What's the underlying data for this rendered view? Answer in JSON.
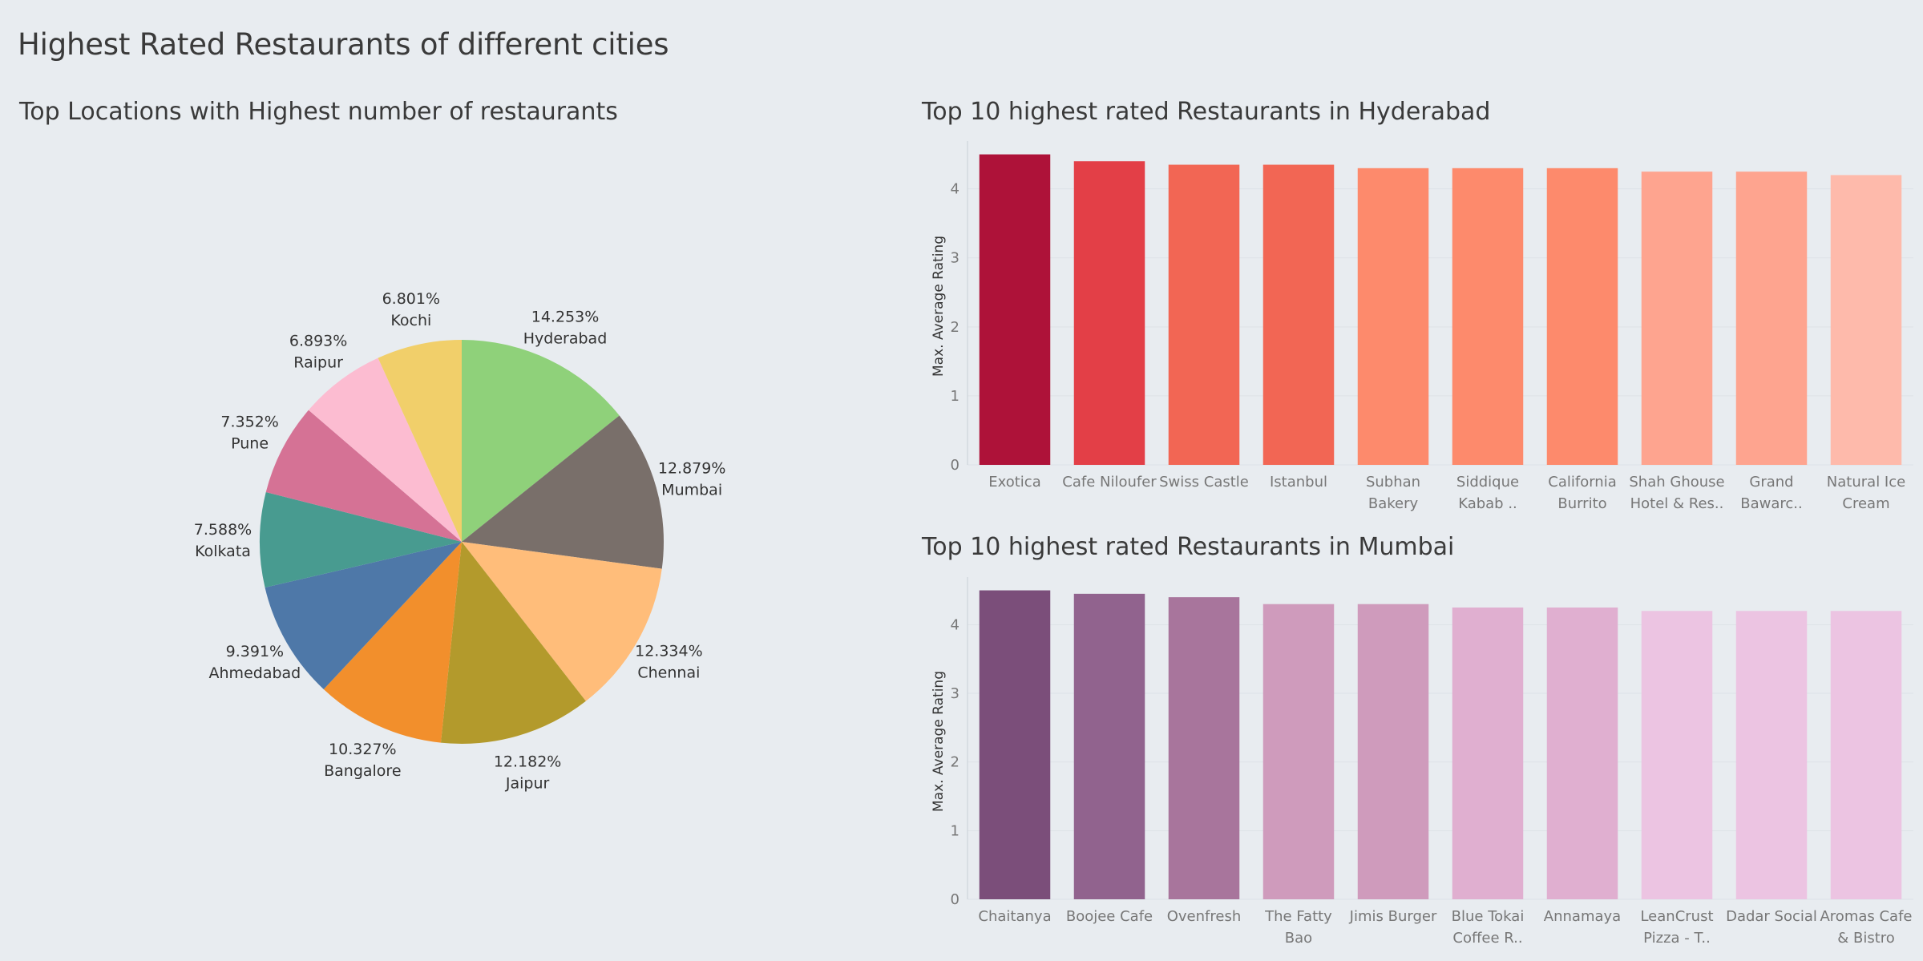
{
  "dashboard": {
    "title": "Highest Rated Restaurants of different cities"
  },
  "chart_data": [
    {
      "type": "pie",
      "title": "Top Locations with Highest number of restaurants",
      "slices": [
        {
          "label": "Hyderabad",
          "value": 14.253,
          "value_label": "14.253%",
          "color": "#8fd17a"
        },
        {
          "label": "Mumbai",
          "value": 12.879,
          "value_label": "12.879%",
          "color": "#796f6a"
        },
        {
          "label": "Chennai",
          "value": 12.334,
          "value_label": "12.334%",
          "color": "#ffbd7a"
        },
        {
          "label": "Jaipur",
          "value": 12.182,
          "value_label": "12.182%",
          "color": "#b39a2c"
        },
        {
          "label": "Bangalore",
          "value": 10.327,
          "value_label": "10.327%",
          "color": "#f28f2c"
        },
        {
          "label": "Ahmedabad",
          "value": 9.391,
          "value_label": "9.391%",
          "color": "#4e78a8"
        },
        {
          "label": "Kolkata",
          "value": 7.588,
          "value_label": "7.588%",
          "color": "#489b90"
        },
        {
          "label": "Pune",
          "value": 7.352,
          "value_label": "7.352%",
          "color": "#d57295"
        },
        {
          "label": "Raipur",
          "value": 6.893,
          "value_label": "6.893%",
          "color": "#fcbcd1"
        },
        {
          "label": "Kochi",
          "value": 6.801,
          "value_label": "6.801%",
          "color": "#f1cf6a"
        }
      ]
    },
    {
      "type": "bar",
      "title": "Top 10 highest rated Restaurants in Hyderabad",
      "ylabel": "Max. Average Rating",
      "ylim": [
        0,
        4.6
      ],
      "yticks": [
        0,
        1,
        2,
        3,
        4
      ],
      "categories": [
        [
          "Exotica"
        ],
        [
          "Cafe Niloufer"
        ],
        [
          "Swiss Castle"
        ],
        [
          "Istanbul"
        ],
        [
          "Subhan",
          "Bakery"
        ],
        [
          "Siddique",
          "Kabab .."
        ],
        [
          "California",
          "Burrito"
        ],
        [
          "Shah Ghouse",
          "Hotel & Res.."
        ],
        [
          "Grand",
          "Bawarc.."
        ],
        [
          "Natural Ice",
          "Cream"
        ]
      ],
      "values": [
        4.5,
        4.4,
        4.35,
        4.35,
        4.3,
        4.3,
        4.3,
        4.25,
        4.25,
        4.2
      ],
      "colors": [
        "#ae1239",
        "#e33f47",
        "#f26654",
        "#f26654",
        "#fd8a6c",
        "#fd8a6c",
        "#fd8a6c",
        "#fea48f",
        "#fea48f",
        "#febaab"
      ]
    },
    {
      "type": "bar",
      "title": "Top 10 highest rated Restaurants in Mumbai",
      "ylabel": "Max. Average Rating",
      "ylim": [
        0,
        4.6
      ],
      "yticks": [
        0,
        1,
        2,
        3,
        4
      ],
      "categories": [
        [
          "Chaitanya"
        ],
        [
          "Boojee Cafe"
        ],
        [
          "Ovenfresh"
        ],
        [
          "The Fatty",
          "Bao"
        ],
        [
          "Jimis Burger"
        ],
        [
          "Blue Tokai",
          "Coffee R.."
        ],
        [
          "Annamaya"
        ],
        [
          "LeanCrust",
          "Pizza - T.."
        ],
        [
          "Dadar Social"
        ],
        [
          "Aromas Cafe",
          "& Bistro"
        ]
      ],
      "values": [
        4.5,
        4.45,
        4.4,
        4.3,
        4.3,
        4.25,
        4.25,
        4.2,
        4.2,
        4.2
      ],
      "colors": [
        "#7b4e7a",
        "#91638e",
        "#a8759c",
        "#cf9bbc",
        "#cf9bbc",
        "#e0afd0",
        "#e0afd0",
        "#ecc4e2",
        "#ecc4e2",
        "#ecc4e2"
      ]
    }
  ]
}
